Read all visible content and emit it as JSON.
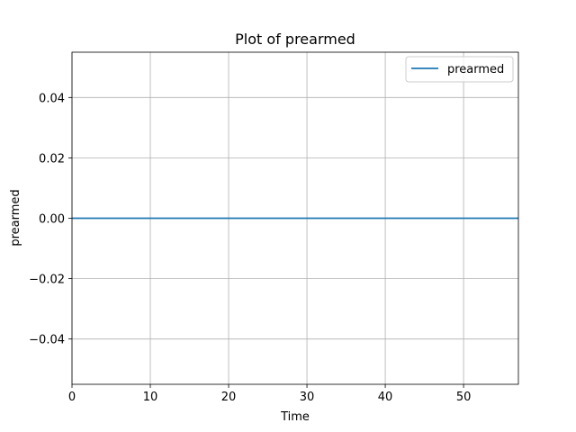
{
  "chart_data": {
    "type": "line",
    "title": "Plot of prearmed",
    "xlabel": "Time",
    "ylabel": "prearmed",
    "xlim": [
      0,
      57
    ],
    "ylim": [
      -0.055,
      0.055
    ],
    "xticks": [
      0,
      10,
      20,
      30,
      40,
      50
    ],
    "xtick_labels": [
      "0",
      "10",
      "20",
      "30",
      "40",
      "50"
    ],
    "yticks": [
      -0.04,
      -0.02,
      0.0,
      0.02,
      0.04
    ],
    "ytick_labels": [
      "−0.04",
      "−0.02",
      "0.00",
      "0.02",
      "0.04"
    ],
    "grid": true,
    "legend_position": "top-right",
    "series": [
      {
        "name": "prearmed",
        "color": "#1f77b4",
        "x": [
          0,
          57
        ],
        "y": [
          0,
          0
        ]
      }
    ]
  }
}
